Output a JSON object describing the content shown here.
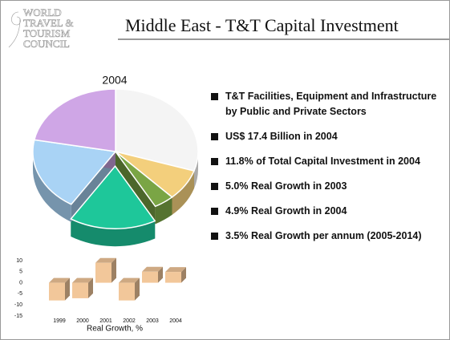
{
  "logo": [
    "WORLD",
    "TRAVEL &",
    "TOURISM",
    "COUNCIL"
  ],
  "header": {
    "title": "Middle East - T&T Capital Investment"
  },
  "bullets": [
    "T&T Facilities, Equipment and Infrastructure by Public and Private Sectors",
    "US$ 17.4 Billion in 2004",
    "11.8% of Total Capital Investment in 2004",
    "5.0% Real Growth in 2003",
    "4.9% Real Growth in 2004",
    "3.5% Real Growth per annum (2005-2014)"
  ],
  "chart_data": [
    {
      "type": "pie",
      "title": "2004",
      "values": [
        30,
        8,
        4,
        17,
        19,
        22
      ],
      "colors": [
        "#f4f4f4",
        "#f3cf7c",
        "#7aa545",
        "#1ec79a",
        "#a9d3f5",
        "#cfa6e6"
      ],
      "exploded": [
        3
      ]
    },
    {
      "type": "bar",
      "x_label": "Real Growth, %",
      "categories": [
        "1999",
        "2000",
        "2001",
        "2002",
        "2003",
        "2004"
      ],
      "values": [
        -8,
        -7,
        9,
        -8,
        5,
        4.9
      ],
      "color": "#f2c79a",
      "ylim": [
        -15,
        10
      ],
      "yticks": [
        10,
        5,
        0,
        -5,
        -10,
        -15
      ]
    }
  ]
}
